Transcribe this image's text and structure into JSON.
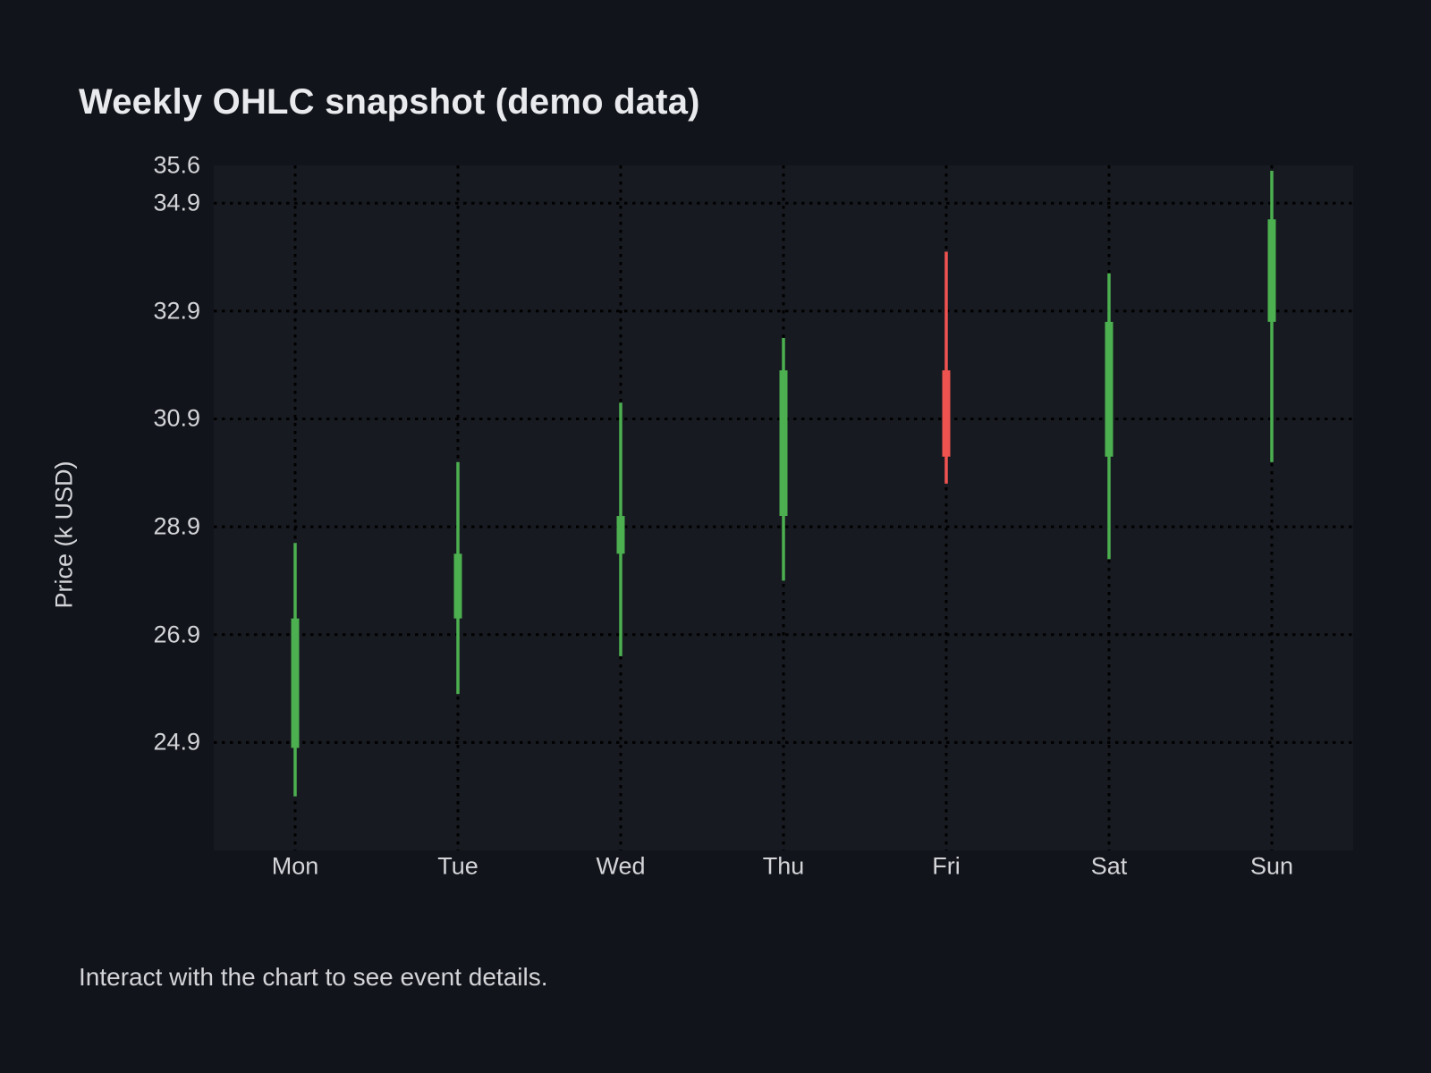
{
  "chart_data": {
    "type": "candlestick",
    "title": "Weekly OHLC snapshot (demo data)",
    "ylabel": "Price (k USD)",
    "footer": "Interact with the chart to see event details.",
    "categories": [
      "Mon",
      "Tue",
      "Wed",
      "Thu",
      "Fri",
      "Sat",
      "Sun"
    ],
    "ohlc": [
      {
        "day": "Mon",
        "open": 24.8,
        "high": 28.6,
        "low": 23.9,
        "close": 27.2
      },
      {
        "day": "Tue",
        "open": 27.2,
        "high": 30.1,
        "low": 25.8,
        "close": 28.4
      },
      {
        "day": "Wed",
        "open": 28.4,
        "high": 31.2,
        "low": 26.5,
        "close": 29.1
      },
      {
        "day": "Thu",
        "open": 29.1,
        "high": 32.4,
        "low": 27.9,
        "close": 31.8
      },
      {
        "day": "Fri",
        "open": 31.8,
        "high": 34.0,
        "low": 29.7,
        "close": 30.2
      },
      {
        "day": "Sat",
        "open": 30.2,
        "high": 33.6,
        "low": 28.3,
        "close": 32.7
      },
      {
        "day": "Sun",
        "open": 32.7,
        "high": 35.5,
        "low": 30.1,
        "close": 34.6
      }
    ],
    "y_ticks": [
      35.6,
      34.9,
      32.9,
      30.9,
      28.9,
      26.9,
      24.9
    ],
    "ylim": [
      22.9,
      35.6
    ],
    "grid": "dotted",
    "legend": "none",
    "colors": {
      "up": "#4caf50",
      "down": "#ef5350",
      "grid": "#000000",
      "plot_bg": "#171a20",
      "page_bg": "#12141b",
      "title_text": "#e8eaed",
      "text": "#d2d4d8"
    }
  }
}
